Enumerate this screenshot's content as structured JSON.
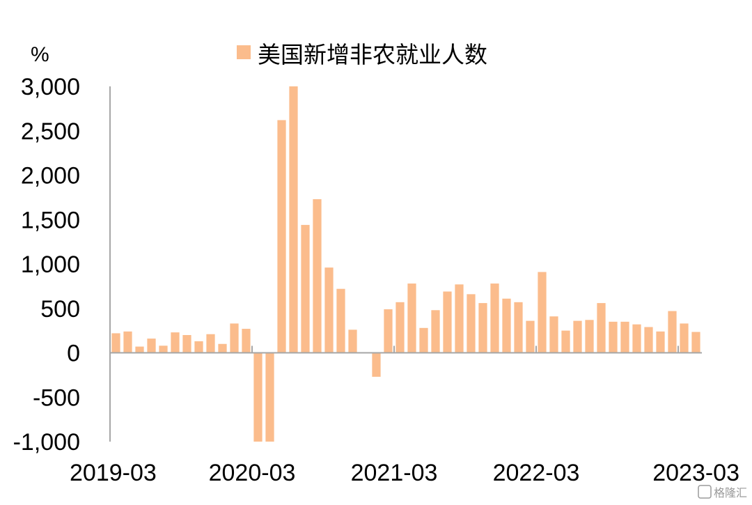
{
  "chart_data": {
    "type": "bar",
    "unit_label": "%",
    "legend": [
      "美国新增非农就业人数"
    ],
    "legend_position": "top-center",
    "grid": false,
    "color": "#FBBC8C",
    "ylim": [
      -1000,
      3000
    ],
    "yticks": [
      {
        "value": 3000,
        "label": "3,000"
      },
      {
        "value": 2500,
        "label": "2,500"
      },
      {
        "value": 2000,
        "label": "2,000"
      },
      {
        "value": 1500,
        "label": "1,500"
      },
      {
        "value": 1000,
        "label": "1,000"
      },
      {
        "value": 500,
        "label": "500"
      },
      {
        "value": 0,
        "label": "0"
      },
      {
        "value": -500,
        "label": "-500"
      },
      {
        "value": -1000,
        "label": "-1,000"
      }
    ],
    "xtick_labels": [
      {
        "index": 0,
        "label": "2019-03"
      },
      {
        "index": 12,
        "label": "2020-03"
      },
      {
        "index": 24,
        "label": "2021-03"
      },
      {
        "index": 36,
        "label": "2022-03"
      },
      {
        "index": 48,
        "label": "2023-03"
      }
    ],
    "series": [
      {
        "name": "美国新增非农就业人数",
        "values": [
          220,
          240,
          70,
          160,
          80,
          230,
          200,
          130,
          210,
          100,
          330,
          270,
          -1000,
          -1000,
          2620,
          3000,
          1440,
          1730,
          960,
          720,
          260,
          0,
          -270,
          490,
          570,
          780,
          280,
          480,
          690,
          770,
          660,
          560,
          780,
          610,
          570,
          360,
          910,
          410,
          250,
          360,
          370,
          560,
          350,
          350,
          320,
          290,
          240,
          470,
          330,
          235
        ]
      }
    ]
  },
  "watermark": "格隆汇"
}
